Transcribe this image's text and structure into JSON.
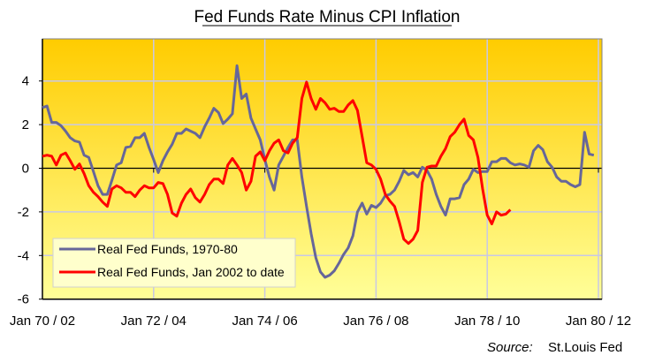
{
  "chart_data": {
    "type": "line",
    "title": "Fed Funds Rate Minus CPI Inflation",
    "source_label": "Source:",
    "source": "St.Louis Fed",
    "xlabel": "",
    "ylabel": "",
    "x_tick_labels": [
      "Jan 70 / 02",
      "Jan 72 / 04",
      "Jan 74 / 06",
      "Jan 76 / 08",
      "Jan 78 / 10",
      "Jan 80 / 12"
    ],
    "x_ticks_months": [
      0,
      24,
      48,
      72,
      96,
      120
    ],
    "y_ticks": [
      4,
      2,
      0,
      -2,
      -4,
      -6
    ],
    "ylim": [
      -6,
      6
    ],
    "grid": true,
    "legend_position": "bottom-left",
    "background_gradient": [
      "#FFCC00",
      "#FFFF99"
    ],
    "series": [
      {
        "name": "Real Fed Funds, 1970-80",
        "start": "Jan 1970",
        "frequency": "monthly",
        "color": "#666699",
        "values": [
          2.78,
          2.85,
          2.1,
          2.1,
          1.95,
          1.7,
          1.4,
          1.25,
          1.2,
          0.6,
          0.5,
          -0.15,
          -0.8,
          -1.2,
          -1.2,
          -0.55,
          0.15,
          0.25,
          0.95,
          1.0,
          1.4,
          1.4,
          1.6,
          0.95,
          0.4,
          -0.2,
          0.35,
          0.75,
          1.1,
          1.6,
          1.6,
          1.8,
          1.7,
          1.6,
          1.4,
          1.9,
          2.3,
          2.75,
          2.55,
          2.05,
          2.25,
          2.5,
          4.7,
          3.2,
          3.4,
          2.3,
          1.8,
          1.3,
          0.4,
          -0.4,
          -1.0,
          0.15,
          0.55,
          0.95,
          1.3,
          1.3,
          -0.4,
          -1.75,
          -3.0,
          -4.1,
          -4.75,
          -5.0,
          -4.9,
          -4.7,
          -4.35,
          -3.95,
          -3.65,
          -3.1,
          -2.0,
          -1.6,
          -2.1,
          -1.7,
          -1.8,
          -1.6,
          -1.25,
          -1.2,
          -1.0,
          -0.6,
          -0.1,
          -0.3,
          -0.2,
          -0.4,
          0.05,
          -0.1,
          -0.5,
          -1.2,
          -1.75,
          -2.15,
          -1.4,
          -1.4,
          -1.35,
          -0.75,
          -0.5,
          -0.05,
          -0.2,
          -0.15,
          -0.15,
          0.3,
          0.3,
          0.45,
          0.45,
          0.25,
          0.15,
          0.2,
          0.15,
          0.05,
          0.8,
          1.05,
          0.85,
          0.3,
          0.05,
          -0.4,
          -0.6,
          -0.6,
          -0.75,
          -0.85,
          -0.75,
          1.65,
          0.65,
          0.6
        ]
      },
      {
        "name": "Real Fed Funds, Jan 2002 to date",
        "start": "Jan 2002",
        "frequency": "monthly",
        "color": "#FF0000",
        "values": [
          0.55,
          0.6,
          0.55,
          0.15,
          0.6,
          0.7,
          0.35,
          -0.05,
          0.2,
          -0.25,
          -0.8,
          -1.1,
          -1.3,
          -1.55,
          -1.75,
          -0.95,
          -0.8,
          -0.9,
          -1.1,
          -1.1,
          -1.3,
          -1.0,
          -0.8,
          -0.9,
          -0.9,
          -0.65,
          -0.7,
          -1.2,
          -2.05,
          -2.2,
          -1.6,
          -1.2,
          -0.95,
          -1.35,
          -1.55,
          -1.2,
          -0.75,
          -0.5,
          -0.5,
          -0.7,
          0.15,
          0.45,
          0.15,
          -0.2,
          -1.0,
          -0.6,
          0.55,
          0.75,
          0.35,
          0.8,
          1.15,
          1.3,
          0.8,
          0.7,
          1.15,
          1.4,
          3.2,
          3.95,
          3.2,
          2.7,
          3.2,
          3.0,
          2.7,
          2.75,
          2.6,
          2.6,
          2.9,
          3.1,
          2.65,
          1.45,
          0.25,
          0.15,
          -0.05,
          -0.5,
          -1.2,
          -1.5,
          -1.75,
          -2.45,
          -3.25,
          -3.45,
          -3.25,
          -2.85,
          -0.65,
          0.05,
          0.1,
          0.1,
          0.55,
          0.9,
          1.45,
          1.65,
          2.0,
          2.25,
          1.5,
          1.3,
          0.5,
          -0.95,
          -2.15,
          -2.55,
          -2.0,
          -2.15,
          -2.1,
          -1.9
        ]
      }
    ]
  }
}
